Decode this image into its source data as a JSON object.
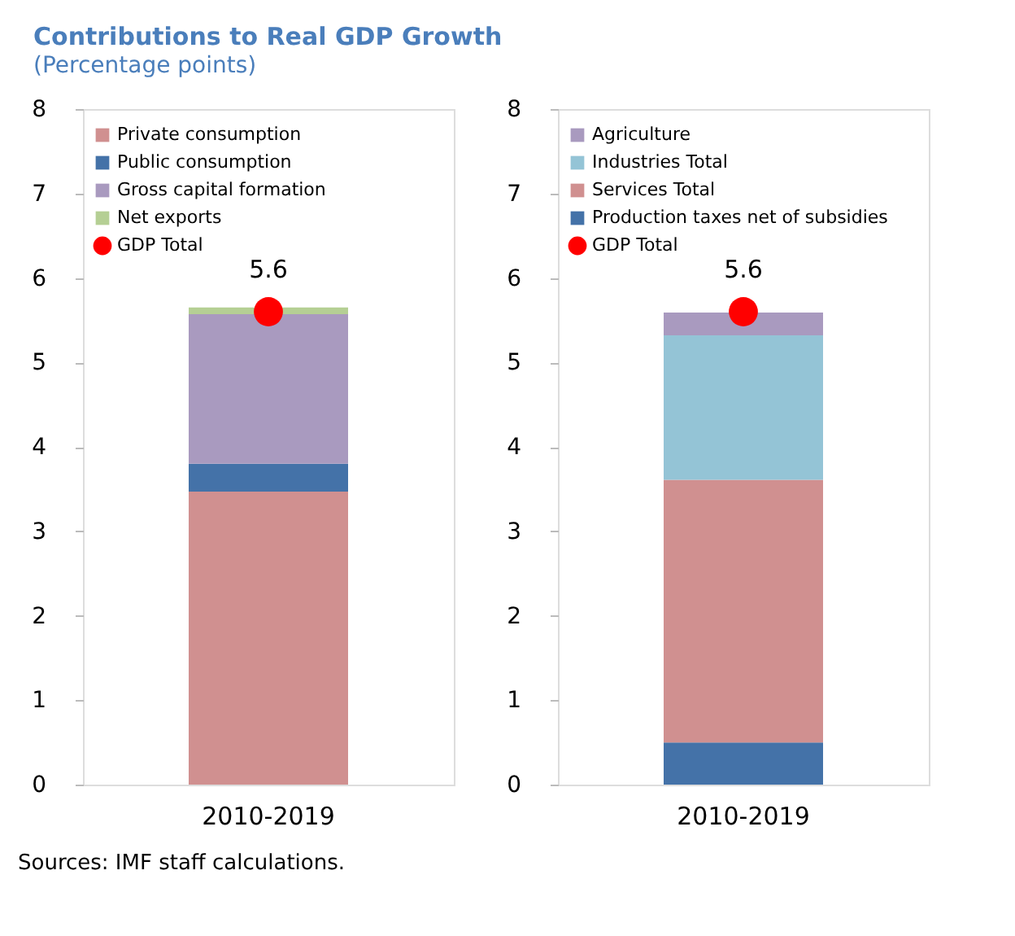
{
  "chart_data": [
    {
      "type": "bar",
      "title": "Contributions to Real GDP Growth",
      "subtitle": "(Percentage points)",
      "categories": [
        "2010-2019"
      ],
      "stacked": true,
      "ylim": [
        0,
        8
      ],
      "yticks": [
        0,
        1,
        2,
        3,
        4,
        5,
        6,
        7,
        8
      ],
      "grid": false,
      "legend": "top left",
      "series": [
        {
          "name": "Private consumption",
          "color": "#d09090",
          "values": [
            3.47
          ]
        },
        {
          "name": "Public consumption",
          "color": "#4472a8",
          "values": [
            0.33
          ]
        },
        {
          "name": "Gross capital formation",
          "color": "#a99abf",
          "values": [
            1.77
          ]
        },
        {
          "name": "Net exports",
          "color": "#b5cf94",
          "values": [
            0.08
          ]
        },
        {
          "name": "GDP Total",
          "type": "scatter",
          "marker": "circle",
          "color": "#ff0000",
          "x": [
            "2010-2019"
          ],
          "values": [
            5.6
          ],
          "value_labels": [
            "5.6"
          ]
        }
      ],
      "annotations": [
        "Sources: IMF staff calculations."
      ]
    },
    {
      "type": "bar",
      "categories": [
        "2010-2019"
      ],
      "stacked": true,
      "ylim": [
        0,
        8
      ],
      "yticks": [
        0,
        1,
        2,
        3,
        4,
        5,
        6,
        7,
        8
      ],
      "grid": false,
      "legend": "top left",
      "series": [
        {
          "name": "Production taxes net of subsidies",
          "color": "#4472a8",
          "values": [
            0.5
          ]
        },
        {
          "name": "Services Total",
          "color": "#d09090",
          "values": [
            3.11
          ]
        },
        {
          "name": "Industries Total",
          "color": "#94c4d6",
          "values": [
            1.71
          ]
        },
        {
          "name": "Agriculture",
          "color": "#a99abf",
          "values": [
            0.27
          ]
        },
        {
          "name": "GDP Total",
          "type": "scatter",
          "marker": "circle",
          "color": "#ff0000",
          "x": [
            "2010-2019"
          ],
          "values": [
            5.6
          ],
          "value_labels": [
            "5.6"
          ]
        }
      ]
    }
  ]
}
